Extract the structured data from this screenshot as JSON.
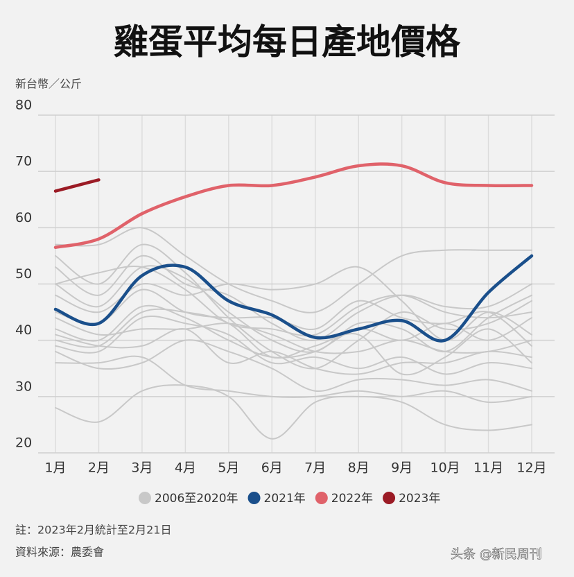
{
  "chart_data": {
    "type": "line",
    "title": "雞蛋平均每日產地價格",
    "y_label": "新台幣／公斤",
    "note": "註：2023年2月統計至2月21日",
    "source": "資料來源：農委會",
    "watermark": "头条 @新民周刊",
    "categories": [
      "1月",
      "2月",
      "3月",
      "4月",
      "5月",
      "6月",
      "7月",
      "8月",
      "9月",
      "10月",
      "11月",
      "12月"
    ],
    "ylim": [
      20,
      80
    ],
    "yticks": [
      20,
      30,
      40,
      50,
      60,
      70,
      80
    ],
    "grid": true,
    "series": [
      {
        "name": "2006至2020年",
        "color": "#c8c8c8",
        "values": [
          [
            57,
            57,
            60,
            55,
            50,
            47,
            45,
            50,
            55,
            56,
            56,
            56
          ],
          [
            28,
            25.5,
            31,
            32,
            30,
            22.5,
            29,
            30,
            29,
            25,
            24,
            25
          ],
          [
            55,
            50,
            57,
            52,
            44,
            38,
            35,
            40,
            45,
            42,
            43,
            47
          ],
          [
            53,
            48,
            55,
            50,
            48,
            43,
            40,
            45,
            48,
            46,
            46,
            50
          ],
          [
            50,
            46,
            53,
            51,
            45,
            40,
            38,
            43,
            42,
            38,
            44,
            48
          ],
          [
            48,
            45,
            50,
            48,
            50,
            49,
            50,
            53,
            47,
            40,
            45,
            41
          ],
          [
            45,
            43,
            49,
            45,
            44,
            44,
            42,
            47,
            44,
            43,
            45,
            39
          ],
          [
            42,
            40,
            46,
            44,
            40,
            37,
            38,
            42,
            40,
            43,
            40,
            44
          ],
          [
            40,
            39,
            45,
            45,
            43,
            37,
            39,
            41,
            34,
            37,
            42,
            36
          ],
          [
            39,
            38,
            44,
            43,
            41,
            36,
            37,
            35,
            37,
            34,
            36,
            35
          ],
          [
            38,
            35,
            36,
            40,
            38,
            35,
            31,
            33,
            33,
            32,
            33,
            31
          ],
          [
            36,
            36,
            37,
            32,
            31,
            30,
            30,
            31,
            30,
            31,
            29,
            30
          ],
          [
            44,
            41,
            42,
            42,
            43,
            41,
            38,
            38,
            40,
            38,
            38,
            40
          ],
          [
            50,
            52,
            53,
            49,
            43,
            42,
            41,
            46,
            48,
            45,
            44,
            45
          ],
          [
            41,
            39,
            39,
            42,
            36,
            38,
            35,
            34,
            36,
            36,
            38,
            37
          ]
        ]
      },
      {
        "name": "2021年",
        "color": "#1a4f8b",
        "values": [
          45.5,
          43,
          51.5,
          53,
          47,
          44.5,
          40.5,
          42,
          43.5,
          40,
          48.5,
          55
        ]
      },
      {
        "name": "2022年",
        "color": "#e0626a",
        "values": [
          56.5,
          58,
          62.5,
          65.5,
          67.5,
          67.5,
          69,
          71,
          71,
          68,
          67.5,
          67.5
        ]
      },
      {
        "name": "2023年",
        "color": "#9b1b25",
        "values": [
          66.5,
          68.5,
          null,
          null,
          null,
          null,
          null,
          null,
          null,
          null,
          null,
          null
        ]
      }
    ]
  }
}
